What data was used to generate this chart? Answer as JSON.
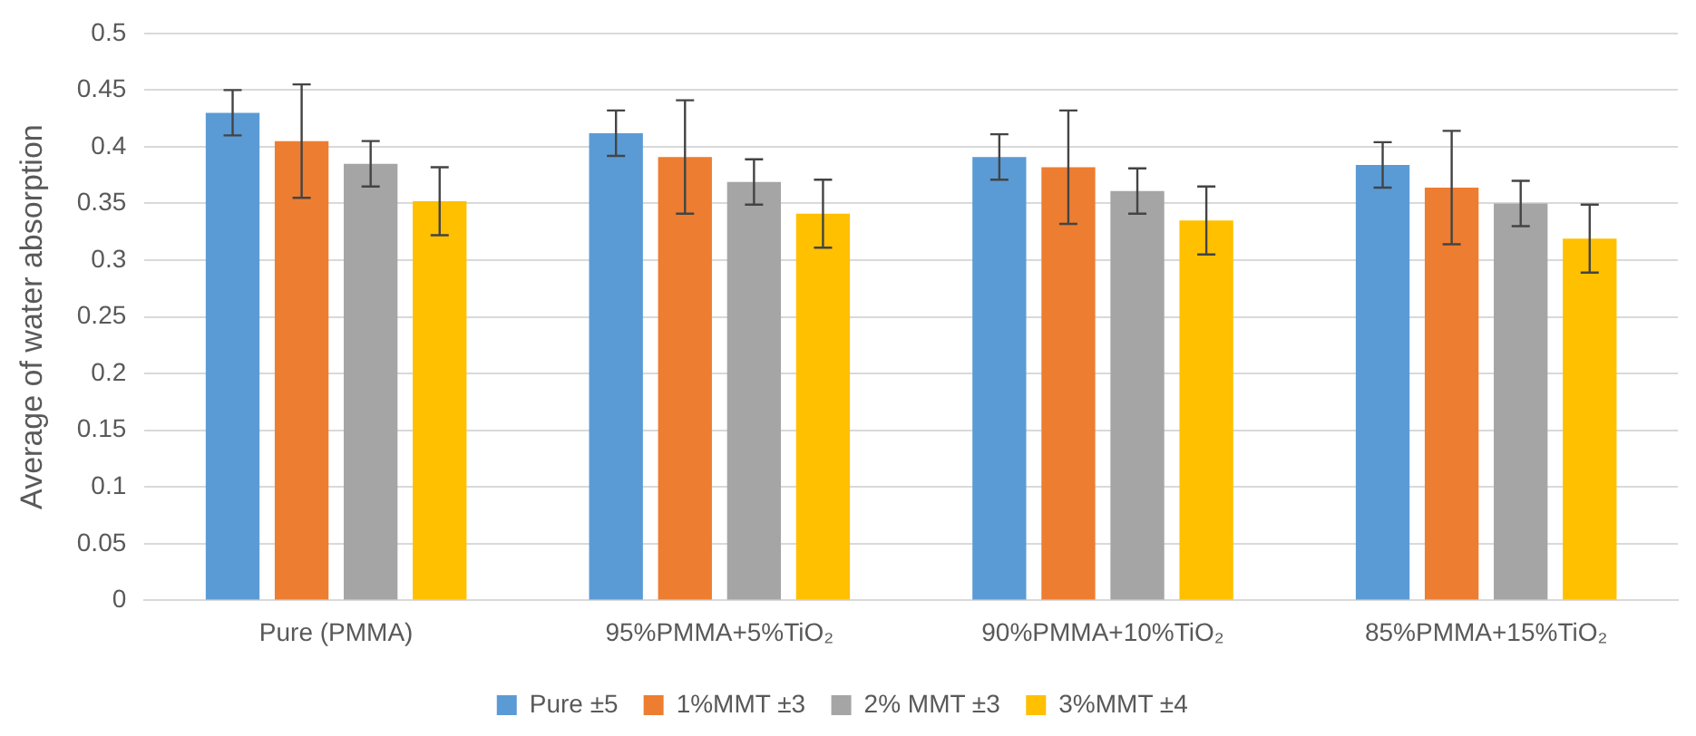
{
  "chart_data": {
    "type": "bar",
    "ylabel": "Average of water absorption",
    "categories": [
      "Pure (PMMA)",
      "95%PMMA+5%TiO₂",
      "90%PMMA+10%TiO₂",
      "85%PMMA+15%TiO₂"
    ],
    "series": [
      {
        "name": "Pure ±5",
        "color": "#5b9bd5",
        "values": [
          0.43,
          0.412,
          0.391,
          0.384
        ],
        "errors": [
          0.02,
          0.02,
          0.02,
          0.02
        ]
      },
      {
        "name": "1%MMT ±3",
        "color": "#ed7d31",
        "values": [
          0.405,
          0.391,
          0.382,
          0.364
        ],
        "errors": [
          0.05,
          0.05,
          0.05,
          0.05
        ]
      },
      {
        "name": "2% MMT ±3",
        "color": "#a5a5a5",
        "values": [
          0.385,
          0.369,
          0.361,
          0.35
        ],
        "errors": [
          0.02,
          0.02,
          0.02,
          0.02
        ]
      },
      {
        "name": "3%MMT ±4",
        "color": "#ffc000",
        "values": [
          0.352,
          0.341,
          0.335,
          0.319
        ],
        "errors": [
          0.03,
          0.03,
          0.03,
          0.03
        ]
      }
    ],
    "ylim": [
      0,
      0.5
    ],
    "yticks": [
      0,
      0.05,
      0.1,
      0.15,
      0.2,
      0.25,
      0.3,
      0.35,
      0.4,
      0.45,
      0.5
    ],
    "grid": "y",
    "legend": "bottom"
  }
}
